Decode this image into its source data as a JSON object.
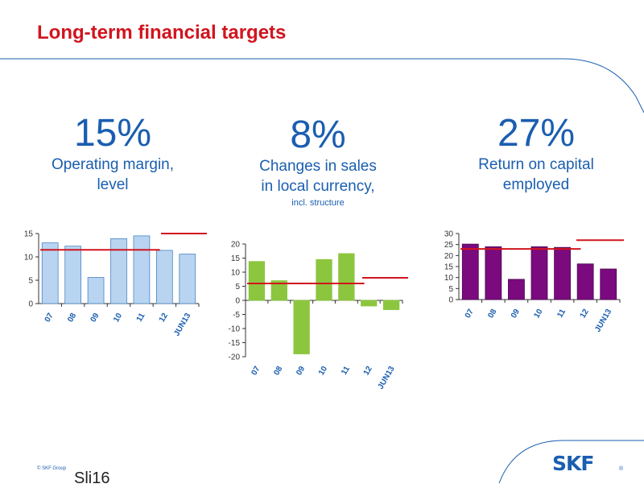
{
  "header": {
    "title": "Long-term financial targets"
  },
  "kpis": [
    {
      "value": "15%",
      "line1": "Operating margin,",
      "line2": "level",
      "line3": ""
    },
    {
      "value": "8%",
      "line1": "Changes in sales",
      "line2": "in local currency,",
      "line3": "incl. structure"
    },
    {
      "value": "27%",
      "line1": "Return on capital",
      "line2": "employed",
      "line3": ""
    }
  ],
  "colors": {
    "accent_red": "#d2141e",
    "skf_blue": "#1a5eb0",
    "bar1": "#b8d4f0",
    "bar2": "#8cc63f",
    "bar3": "#7b0a7e",
    "target_line": "#d2141e"
  },
  "chart_data": [
    {
      "type": "bar",
      "categories": [
        "07",
        "08",
        "09",
        "10",
        "11",
        "12",
        "JUN13"
      ],
      "values": [
        13,
        12.3,
        5.6,
        13.9,
        14.5,
        11.4,
        10.6
      ],
      "yticks": [
        0,
        5,
        10,
        15
      ],
      "ylim": [
        0,
        15
      ],
      "average_line": 11.5,
      "target": 15,
      "title": "",
      "xlabel": "",
      "ylabel": ""
    },
    {
      "type": "bar",
      "categories": [
        "07",
        "08",
        "09",
        "10",
        "11",
        "12",
        "JUN13"
      ],
      "values": [
        13.8,
        7,
        -19,
        14.5,
        16.6,
        -2,
        -3.3
      ],
      "yticks": [
        20,
        15,
        10,
        5,
        0,
        -5,
        -10,
        -15,
        -20
      ],
      "ylim": [
        -20,
        20
      ],
      "average_line": 6,
      "target": 8,
      "title": "",
      "xlabel": "",
      "ylabel": ""
    },
    {
      "type": "bar",
      "categories": [
        "07",
        "08",
        "09",
        "10",
        "11",
        "12",
        "JUN13"
      ],
      "values": [
        25.2,
        24,
        9.2,
        24,
        23.7,
        16.2,
        13.9
      ],
      "yticks": [
        0,
        5,
        10,
        15,
        20,
        25,
        30
      ],
      "ylim": [
        0,
        30
      ],
      "average_line": 23,
      "target": 27,
      "title": "",
      "xlabel": "",
      "ylabel": ""
    }
  ],
  "footer": {
    "copyright": "© SKF Group",
    "slide": "Sli16",
    "logo_text": "SKF",
    "logo_mark": "®"
  }
}
